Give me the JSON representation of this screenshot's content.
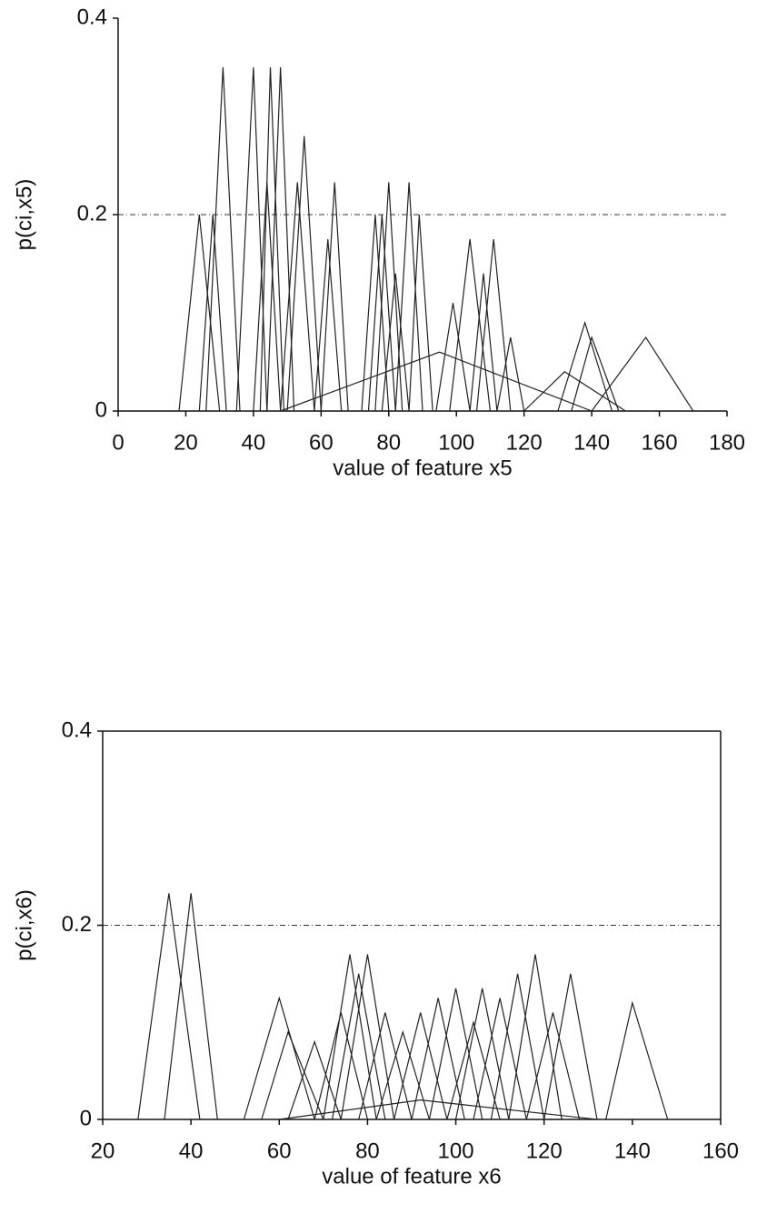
{
  "chart_data": [
    {
      "type": "line",
      "color": "#222",
      "ylabel": "p(ci,x5)",
      "xlabel": "value of feature x5",
      "xlim": [
        0,
        180
      ],
      "xticks": [
        0,
        20,
        40,
        60,
        80,
        100,
        120,
        140,
        160,
        180
      ],
      "ylim": [
        0,
        0.4
      ],
      "yticks": [
        0,
        0.2,
        0.4
      ],
      "grid": true,
      "frame": false,
      "series": [
        {
          "x": [
            18,
            24,
            30
          ],
          "values": [
            0,
            0.2,
            0
          ]
        },
        {
          "x": [
            24,
            28,
            32
          ],
          "values": [
            0,
            0.2,
            0
          ]
        },
        {
          "x": [
            26,
            31,
            36
          ],
          "values": [
            0,
            0.35,
            0
          ]
        },
        {
          "x": [
            35,
            40,
            44
          ],
          "values": [
            0,
            0.35,
            0
          ]
        },
        {
          "x": [
            40,
            44,
            48
          ],
          "values": [
            0,
            0.233,
            0
          ]
        },
        {
          "x": [
            42,
            45,
            49
          ],
          "values": [
            0,
            0.35,
            0
          ]
        },
        {
          "x": [
            44,
            48,
            52
          ],
          "values": [
            0,
            0.35,
            0
          ]
        },
        {
          "x": [
            48,
            53,
            58
          ],
          "values": [
            0,
            0.233,
            0
          ]
        },
        {
          "x": [
            50,
            55,
            60
          ],
          "values": [
            0,
            0.28,
            0
          ]
        },
        {
          "x": [
            58,
            62,
            66
          ],
          "values": [
            0,
            0.175,
            0
          ]
        },
        {
          "x": [
            60,
            64,
            68
          ],
          "values": [
            0,
            0.233,
            0
          ]
        },
        {
          "x": [
            72,
            76,
            80
          ],
          "values": [
            0,
            0.2,
            0
          ]
        },
        {
          "x": [
            74,
            78,
            82
          ],
          "values": [
            0,
            0.2,
            0
          ]
        },
        {
          "x": [
            76,
            80,
            84
          ],
          "values": [
            0,
            0.233,
            0
          ]
        },
        {
          "x": [
            78,
            82,
            86
          ],
          "values": [
            0,
            0.14,
            0
          ]
        },
        {
          "x": [
            82,
            86,
            90
          ],
          "values": [
            0,
            0.233,
            0
          ]
        },
        {
          "x": [
            86,
            89,
            93
          ],
          "values": [
            0,
            0.2,
            0
          ]
        },
        {
          "x": [
            94,
            99,
            104
          ],
          "values": [
            0,
            0.11,
            0
          ]
        },
        {
          "x": [
            98,
            104,
            110
          ],
          "values": [
            0,
            0.175,
            0
          ]
        },
        {
          "x": [
            104,
            108,
            112
          ],
          "values": [
            0,
            0.14,
            0
          ]
        },
        {
          "x": [
            106,
            111,
            116
          ],
          "values": [
            0,
            0.175,
            0
          ]
        },
        {
          "x": [
            112,
            116,
            120
          ],
          "values": [
            0,
            0.075,
            0
          ]
        },
        {
          "x": [
            130,
            138,
            146
          ],
          "values": [
            0,
            0.09,
            0
          ]
        },
        {
          "x": [
            134,
            140,
            148
          ],
          "values": [
            0,
            0.075,
            0
          ]
        },
        {
          "x": [
            140,
            156,
            170
          ],
          "values": [
            0,
            0.075,
            0
          ]
        },
        {
          "x": [
            48,
            95,
            140
          ],
          "values": [
            0,
            0.06,
            0
          ]
        },
        {
          "x": [
            120,
            132,
            150
          ],
          "values": [
            0,
            0.04,
            0
          ]
        }
      ]
    },
    {
      "type": "line",
      "color": "#222",
      "ylabel": "p(ci,x6)",
      "xlabel": "value of feature x6",
      "xlim": [
        20,
        160
      ],
      "xticks": [
        20,
        40,
        60,
        80,
        100,
        120,
        140,
        160
      ],
      "ylim": [
        0,
        0.4
      ],
      "yticks": [
        0,
        0.2,
        0.4
      ],
      "grid": true,
      "frame": true,
      "series": [
        {
          "x": [
            28,
            35,
            42
          ],
          "values": [
            0,
            0.233,
            0
          ]
        },
        {
          "x": [
            34,
            40,
            46
          ],
          "values": [
            0,
            0.233,
            0
          ]
        },
        {
          "x": [
            52,
            60,
            68
          ],
          "values": [
            0,
            0.125,
            0
          ]
        },
        {
          "x": [
            56,
            62,
            70
          ],
          "values": [
            0,
            0.09,
            0
          ]
        },
        {
          "x": [
            62,
            68,
            74
          ],
          "values": [
            0,
            0.08,
            0
          ]
        },
        {
          "x": [
            68,
            74,
            80
          ],
          "values": [
            0,
            0.11,
            0
          ]
        },
        {
          "x": [
            70,
            76,
            82
          ],
          "values": [
            0,
            0.17,
            0
          ]
        },
        {
          "x": [
            72,
            78,
            84
          ],
          "values": [
            0,
            0.15,
            0
          ]
        },
        {
          "x": [
            74,
            80,
            86
          ],
          "values": [
            0,
            0.17,
            0
          ]
        },
        {
          "x": [
            78,
            84,
            90
          ],
          "values": [
            0,
            0.11,
            0
          ]
        },
        {
          "x": [
            82,
            88,
            94
          ],
          "values": [
            0,
            0.09,
            0
          ]
        },
        {
          "x": [
            86,
            92,
            98
          ],
          "values": [
            0,
            0.11,
            0
          ]
        },
        {
          "x": [
            90,
            96,
            102
          ],
          "values": [
            0,
            0.125,
            0
          ]
        },
        {
          "x": [
            94,
            100,
            106
          ],
          "values": [
            0,
            0.135,
            0
          ]
        },
        {
          "x": [
            98,
            104,
            110
          ],
          "values": [
            0,
            0.1,
            0
          ]
        },
        {
          "x": [
            100,
            106,
            112
          ],
          "values": [
            0,
            0.135,
            0
          ]
        },
        {
          "x": [
            104,
            110,
            116
          ],
          "values": [
            0,
            0.125,
            0
          ]
        },
        {
          "x": [
            108,
            114,
            120
          ],
          "values": [
            0,
            0.15,
            0
          ]
        },
        {
          "x": [
            112,
            118,
            124
          ],
          "values": [
            0,
            0.17,
            0
          ]
        },
        {
          "x": [
            116,
            122,
            128
          ],
          "values": [
            0,
            0.11,
            0
          ]
        },
        {
          "x": [
            120,
            126,
            132
          ],
          "values": [
            0,
            0.15,
            0
          ]
        },
        {
          "x": [
            134,
            140,
            148
          ],
          "values": [
            0,
            0.12,
            0
          ]
        },
        {
          "x": [
            60,
            92,
            132
          ],
          "values": [
            0,
            0.02,
            0
          ]
        }
      ]
    }
  ]
}
